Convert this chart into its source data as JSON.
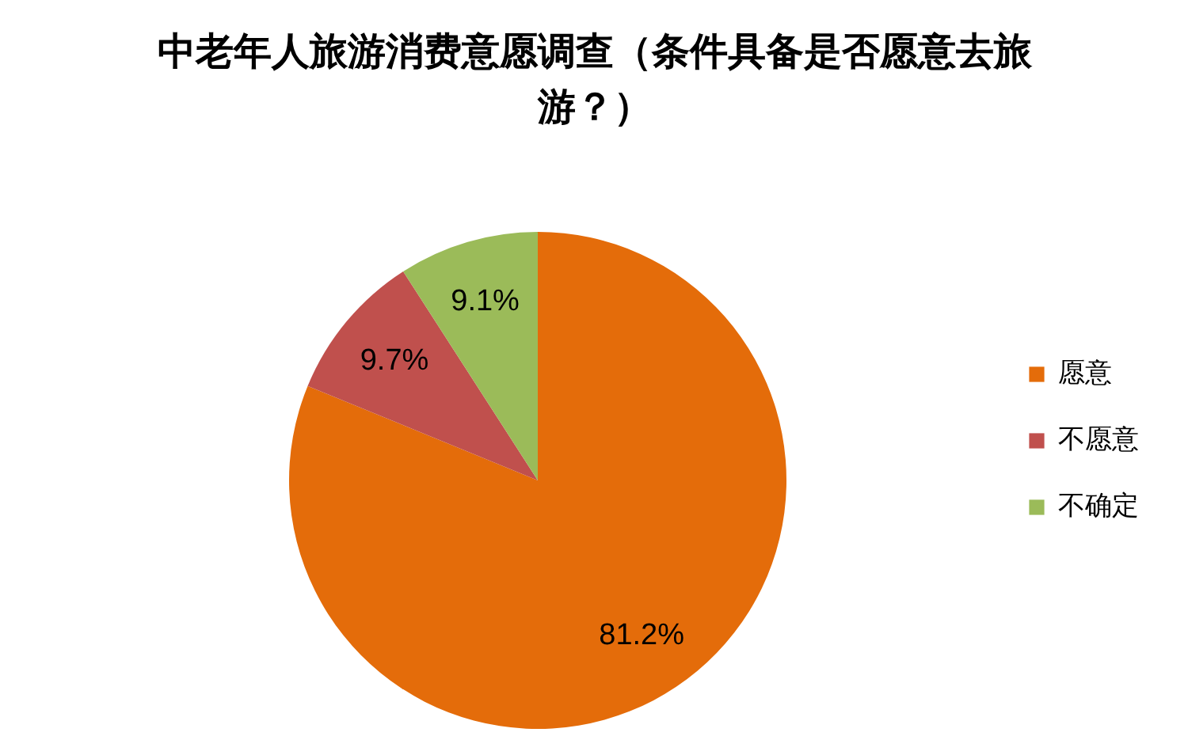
{
  "chart_data": {
    "type": "pie",
    "title": "中老年人旅游消费意愿调查（条件具备是否愿意去旅游？）",
    "categories": [
      "愿意",
      "不愿意",
      "不确定"
    ],
    "values": [
      81.2,
      9.7,
      9.1
    ],
    "value_labels": [
      "81.2%",
      "9.7%",
      "9.1%"
    ],
    "colors": [
      "#e46c0a",
      "#c0504d",
      "#9bbb59"
    ],
    "legend": "right"
  }
}
